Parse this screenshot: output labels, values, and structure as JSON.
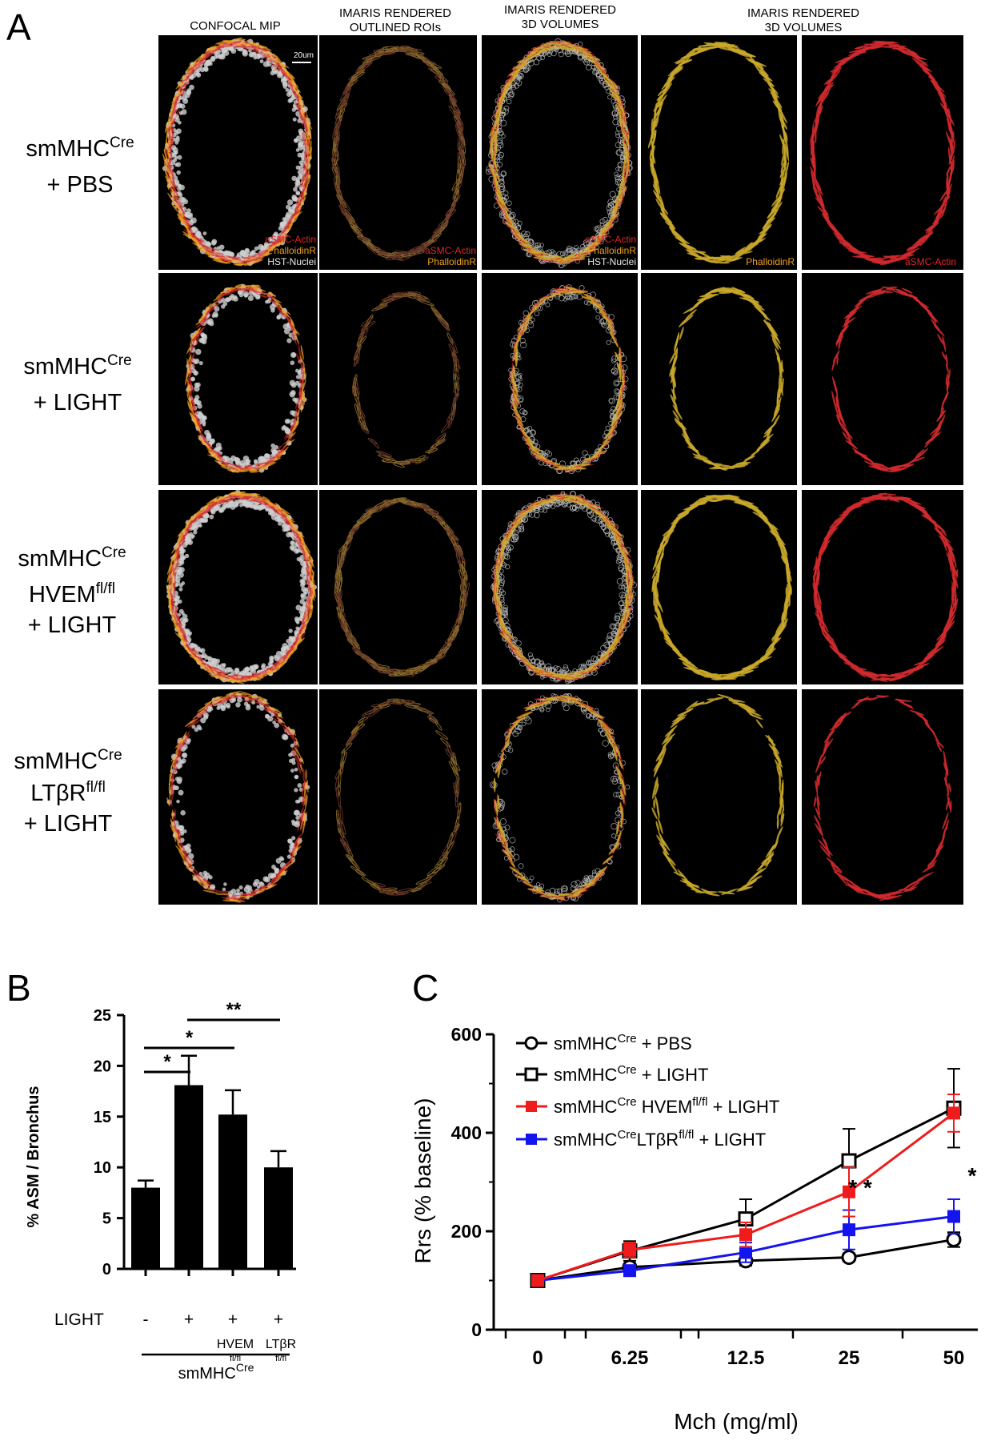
{
  "panel_a": {
    "letter": "A",
    "column_headers": [
      {
        "lines": [
          "CONFOCAL MIP"
        ]
      },
      {
        "lines": [
          "IMARIS RENDERED",
          "OUTLINED ROIs"
        ]
      },
      {
        "lines": [
          "IMARIS RENDERED",
          "3D VOLUMES"
        ]
      },
      {
        "lines": [
          "IMARIS RENDERED",
          "3D VOLUMES"
        ]
      }
    ],
    "scale_bar": "20um",
    "rows": [
      {
        "label_lines": [
          {
            "base": "smMHC",
            "sup": "Cre"
          },
          {
            "base": "+ PBS",
            "sup": ""
          }
        ]
      },
      {
        "label_lines": [
          {
            "base": "smMHC",
            "sup": "Cre"
          },
          {
            "base": "+ LIGHT",
            "sup": ""
          }
        ]
      },
      {
        "label_lines": [
          {
            "base": "smMHC",
            "sup": "Cre"
          },
          {
            "base": "HVEM",
            "sup": "fl/fl"
          },
          {
            "base": "+ LIGHT",
            "sup": ""
          }
        ]
      },
      {
        "label_lines": [
          {
            "base": "smMHC",
            "sup": "Cre"
          },
          {
            "base": "LTβR",
            "sup": "fl/fl"
          },
          {
            "base": "+ LIGHT",
            "sup": ""
          }
        ]
      }
    ],
    "channel_labels": {
      "col1": [
        "aSMC-Actin",
        "PhalloidinR",
        "HST-Nuclei"
      ],
      "col2": [
        "aSMC-Actin",
        "PhalloidinR"
      ],
      "col3": [
        "aSMC-Actin",
        "PhalloidinR",
        "HST-Nuclei"
      ],
      "col4": [
        "PhalloidinR"
      ],
      "col5": [
        "aSMC-Actin"
      ]
    },
    "colors": {
      "actin": "#e0242a",
      "phalloidin": "#f0a020",
      "nuclei": "#d8d8d8",
      "volume_yellow": "#c9a82a"
    }
  },
  "panel_b": {
    "letter": "B",
    "chart_data": {
      "type": "bar",
      "ylabel": "% ASM / Bronchus",
      "ylim": [
        0,
        25
      ],
      "yticks": [
        "0",
        "5",
        "10",
        "15",
        "20",
        "25"
      ],
      "bars": [
        {
          "value": 8.0,
          "error": 0.7,
          "light": "-",
          "sub": "",
          "sub2": ""
        },
        {
          "value": 18.1,
          "error": 2.9,
          "light": "+",
          "sub": "",
          "sub2": ""
        },
        {
          "value": 15.2,
          "error": 2.4,
          "light": "+",
          "sub": "HVEM",
          "sub2": "fl/fl"
        },
        {
          "value": 10.0,
          "error": 1.6,
          "light": "+",
          "sub": "LTβR",
          "sub2": "fl/fl"
        }
      ],
      "row_label": "LIGHT",
      "group_label": {
        "base": "smMHC",
        "sup": "Cre"
      },
      "significance": [
        {
          "from": 0,
          "to": 1,
          "label": "*"
        },
        {
          "from": 0,
          "to": 2,
          "label": "*"
        },
        {
          "from": 1,
          "to": 3,
          "label": "**"
        }
      ],
      "bar_color": "#000000"
    }
  },
  "panel_c": {
    "letter": "C",
    "chart_data": {
      "type": "line",
      "xlabel": "Mch (mg/ml)",
      "ylabel": "Rrs (% baseline)",
      "categories": [
        "0",
        "6.25",
        "12.5",
        "25",
        "50"
      ],
      "ylim": [
        0,
        600
      ],
      "yticks": [
        "0",
        "200",
        "400",
        "600"
      ],
      "series": [
        {
          "legend": {
            "base": "smMHC",
            "sup": "Cre",
            "rest": " + PBS",
            "sup2": "",
            "rest2": ""
          },
          "color": "#000000",
          "marker": "circle-open",
          "values": [
            100,
            127,
            140,
            147,
            183
          ],
          "errors": [
            0,
            8,
            10,
            8,
            15
          ]
        },
        {
          "legend": {
            "base": "smMHC",
            "sup": "Cre",
            "rest": " + LIGHT",
            "sup2": "",
            "rest2": ""
          },
          "color": "#000000",
          "marker": "square-open",
          "values": [
            100,
            160,
            225,
            343,
            450
          ],
          "errors": [
            0,
            20,
            40,
            65,
            80
          ]
        },
        {
          "legend": {
            "base": "smMHC",
            "sup": "Cre",
            "rest": " HVEM",
            "sup2": "fl/fl",
            "rest2": " + LIGHT"
          },
          "color": "#ee1c1c",
          "marker": "square-filled",
          "values": [
            100,
            162,
            193,
            280,
            440
          ],
          "errors": [
            0,
            15,
            25,
            50,
            38
          ]
        },
        {
          "legend": {
            "base": "smMHC",
            "sup": "Cre",
            "rest": "LTβR",
            "sup2": "fl/fl",
            "rest2": " + LIGHT"
          },
          "color": "#1414ee",
          "marker": "square-filled",
          "values": [
            100,
            120,
            157,
            203,
            230
          ],
          "errors": [
            0,
            10,
            20,
            40,
            35
          ]
        }
      ],
      "annotations": [
        {
          "category": "25",
          "label": "* *"
        },
        {
          "category": "50",
          "label": "*"
        }
      ]
    }
  }
}
